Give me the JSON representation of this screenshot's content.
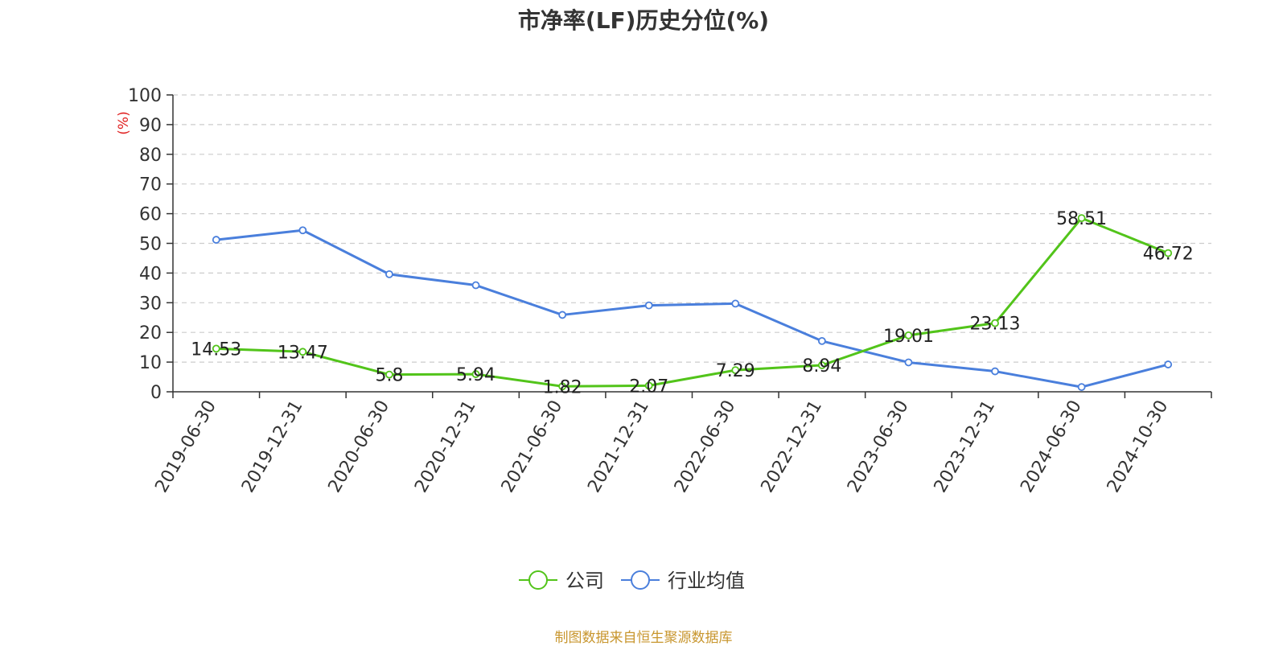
{
  "title": "市净率(LF)历史分位(%)",
  "source": "制图数据来自恒生聚源数据库",
  "chart_data": {
    "type": "line",
    "title": "市净率(LF)历史分位(%)",
    "ylabel": "(%)",
    "ylim": [
      0,
      100
    ],
    "yticks": [
      0,
      10,
      20,
      30,
      40,
      50,
      60,
      70,
      80,
      90,
      100
    ],
    "grid": true,
    "legend_position": "bottom-center",
    "categories": [
      "2019-06-30",
      "2019-12-31",
      "2020-06-30",
      "2020-12-31",
      "2021-06-30",
      "2021-12-31",
      "2022-06-30",
      "2022-12-31",
      "2023-06-30",
      "2023-12-31",
      "2024-06-30",
      "2024-10-30"
    ],
    "series": [
      {
        "name": "公司",
        "color": "#52c41a",
        "show_labels": true,
        "values": [
          14.53,
          13.47,
          5.8,
          5.94,
          1.82,
          2.07,
          7.29,
          8.94,
          19.01,
          23.13,
          58.51,
          46.72
        ]
      },
      {
        "name": "行业均值",
        "color": "#4a7fdc",
        "show_labels": false,
        "values": [
          51.2,
          54.4,
          39.6,
          35.9,
          25.9,
          29.1,
          29.7,
          17.1,
          9.9,
          6.9,
          1.6,
          9.2
        ]
      }
    ]
  }
}
